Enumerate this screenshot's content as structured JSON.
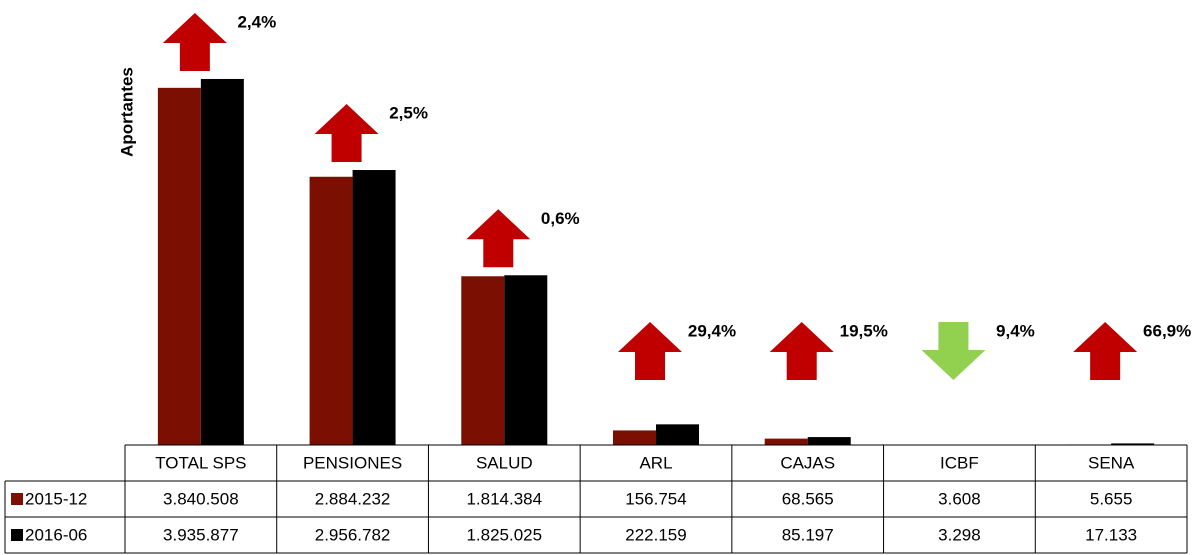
{
  "chart_data": {
    "type": "bar",
    "y_label": "Aportantes",
    "categories": [
      "TOTAL SPS",
      "PENSIONES",
      "SALUD",
      "ARL",
      "CAJAS",
      "ICBF",
      "SENA"
    ],
    "series": [
      {
        "name": "2015-12",
        "color": "#7b1002",
        "values": [
          3840508,
          2884232,
          1814384,
          156754,
          68565,
          3608,
          5655
        ],
        "value_labels": [
          "3.840.508",
          "2.884.232",
          "1.814.384",
          "156.754",
          "68.565",
          "3.608",
          "5.655"
        ]
      },
      {
        "name": "2016-06",
        "color": "#000000",
        "values": [
          3935877,
          2956782,
          1825025,
          222159,
          85197,
          3298,
          17133
        ],
        "value_labels": [
          "3.935.877",
          "2.956.782",
          "1.825.025",
          "222.159",
          "85.197",
          "3.298",
          "17.133"
        ]
      }
    ],
    "changes": [
      "2,4%",
      "2,5%",
      "0,6%",
      "29,4%",
      "19,5%",
      "9,4%",
      "66,9%"
    ],
    "change_directions": [
      "up",
      "up",
      "up",
      "up",
      "up",
      "down",
      "up"
    ],
    "up_color": "#c00000",
    "down_color": "#92d050",
    "ylim": [
      0,
      4000000
    ]
  }
}
